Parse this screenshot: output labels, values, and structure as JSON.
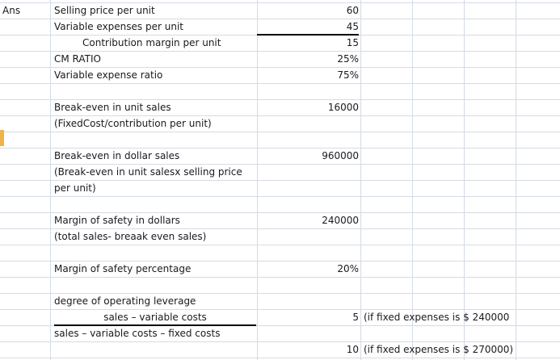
{
  "sheet": {
    "label": "Ans",
    "rows": {
      "selling_price": {
        "label": "Selling price per unit",
        "value": "60"
      },
      "variable_expenses": {
        "label": "Variable expenses per unit",
        "value": "45"
      },
      "contribution": {
        "label": "Contribution margin per unit",
        "value": "15"
      },
      "cm_ratio": {
        "label": "CM RATIO",
        "value": "25%"
      },
      "ver": {
        "label": "Variable expense ratio",
        "value": "75%"
      },
      "be_units": {
        "label": "Break-even in unit sales",
        "note": "(FixedCost/contribution per unit)",
        "value": "16000"
      },
      "be_dollars": {
        "label": "Break-even in dollar sales",
        "note": "(Break-even in unit salesx selling price per unit)",
        "value": "960000"
      },
      "mos_dollars": {
        "label": "Margin of safety in dollars",
        "note": "(total sales- breaak even sales)",
        "value": "240000"
      },
      "mos_pct": {
        "label": "Margin of safety percentage",
        "value": "20%"
      },
      "dol": {
        "label": "degree of operating leverage",
        "numerator": "sales – variable costs",
        "denominator": "sales – variable costs – fixed costs",
        "value1": "5",
        "note1": "(if fixed expenses is $ 240000",
        "value2": "10",
        "note2": "(if fixed expenses is $ 270000)"
      }
    }
  }
}
